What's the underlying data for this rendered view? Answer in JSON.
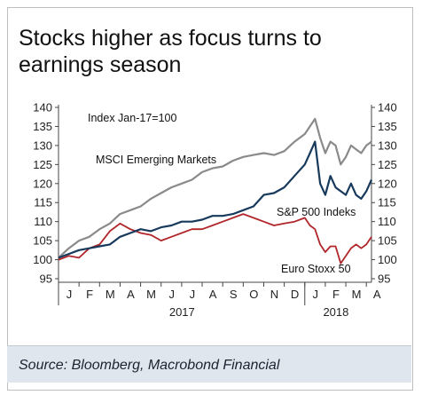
{
  "title": "Stocks higher as focus turns to\nearnings season",
  "source": "Source: Bloomberg, Macrobond Financial",
  "colors": {
    "msci": "#8a8a8a",
    "sp500": "#173a5c",
    "stoxx": "#b0262a",
    "background_band": "#dfe6ee"
  },
  "chart_data": {
    "type": "line",
    "annotation": "Index Jan-17=100",
    "ylim": [
      95,
      140
    ],
    "y_ticks": [
      95,
      100,
      105,
      110,
      115,
      120,
      125,
      130,
      135,
      140
    ],
    "x_months": [
      "J",
      "F",
      "M",
      "A",
      "M",
      "J",
      "J",
      "A",
      "S",
      "O",
      "N",
      "D",
      "J",
      "F",
      "M",
      "A"
    ],
    "x_years": [
      {
        "label": "2017",
        "month_index": 5.5
      },
      {
        "label": "2018",
        "month_index": 13.0
      }
    ],
    "x": [
      0,
      0.5,
      1,
      1.5,
      2,
      2.5,
      3,
      3.5,
      4,
      4.5,
      5,
      5.5,
      6,
      6.5,
      7,
      7.5,
      8,
      8.5,
      9,
      9.5,
      10,
      10.5,
      11,
      11.5,
      12,
      12.25,
      12.5,
      12.75,
      13,
      13.25,
      13.5,
      13.75,
      14,
      14.25,
      14.5,
      14.75,
      15,
      15.25
    ],
    "series": [
      {
        "name": "MSCI Emerging Markets",
        "key": "msci",
        "values": [
          100.5,
          103,
          105,
          106,
          108,
          109.5,
          112,
          113,
          114,
          116,
          117.5,
          119,
          120,
          121,
          123,
          124,
          124.5,
          126,
          127,
          127.5,
          128,
          127.5,
          128.5,
          131,
          133,
          135,
          137,
          132,
          128,
          131,
          130,
          125,
          127,
          130,
          129,
          128,
          130,
          131
        ]
      },
      {
        "name": "S&P 500 Indeks",
        "key": "sp500",
        "values": [
          100.5,
          101.5,
          102.5,
          103,
          103.5,
          104,
          106,
          107,
          108,
          107.5,
          108.5,
          109,
          110,
          110,
          110.5,
          111.5,
          111.5,
          112,
          113,
          114,
          117,
          117.5,
          119,
          122,
          125,
          128,
          131,
          120,
          117,
          122,
          119,
          118,
          117,
          120,
          117,
          116,
          118,
          121
        ]
      },
      {
        "name": "Euro Stoxx 50",
        "key": "stoxx",
        "values": [
          100,
          101,
          100.5,
          103,
          104,
          107.5,
          109.5,
          108,
          107,
          106.5,
          105,
          106,
          107,
          108,
          108,
          109,
          110,
          111,
          112,
          111,
          110,
          109,
          109.5,
          110,
          111,
          109,
          108,
          104,
          102,
          103.5,
          103.5,
          99,
          101,
          103,
          104,
          103,
          104,
          106
        ]
      }
    ]
  }
}
